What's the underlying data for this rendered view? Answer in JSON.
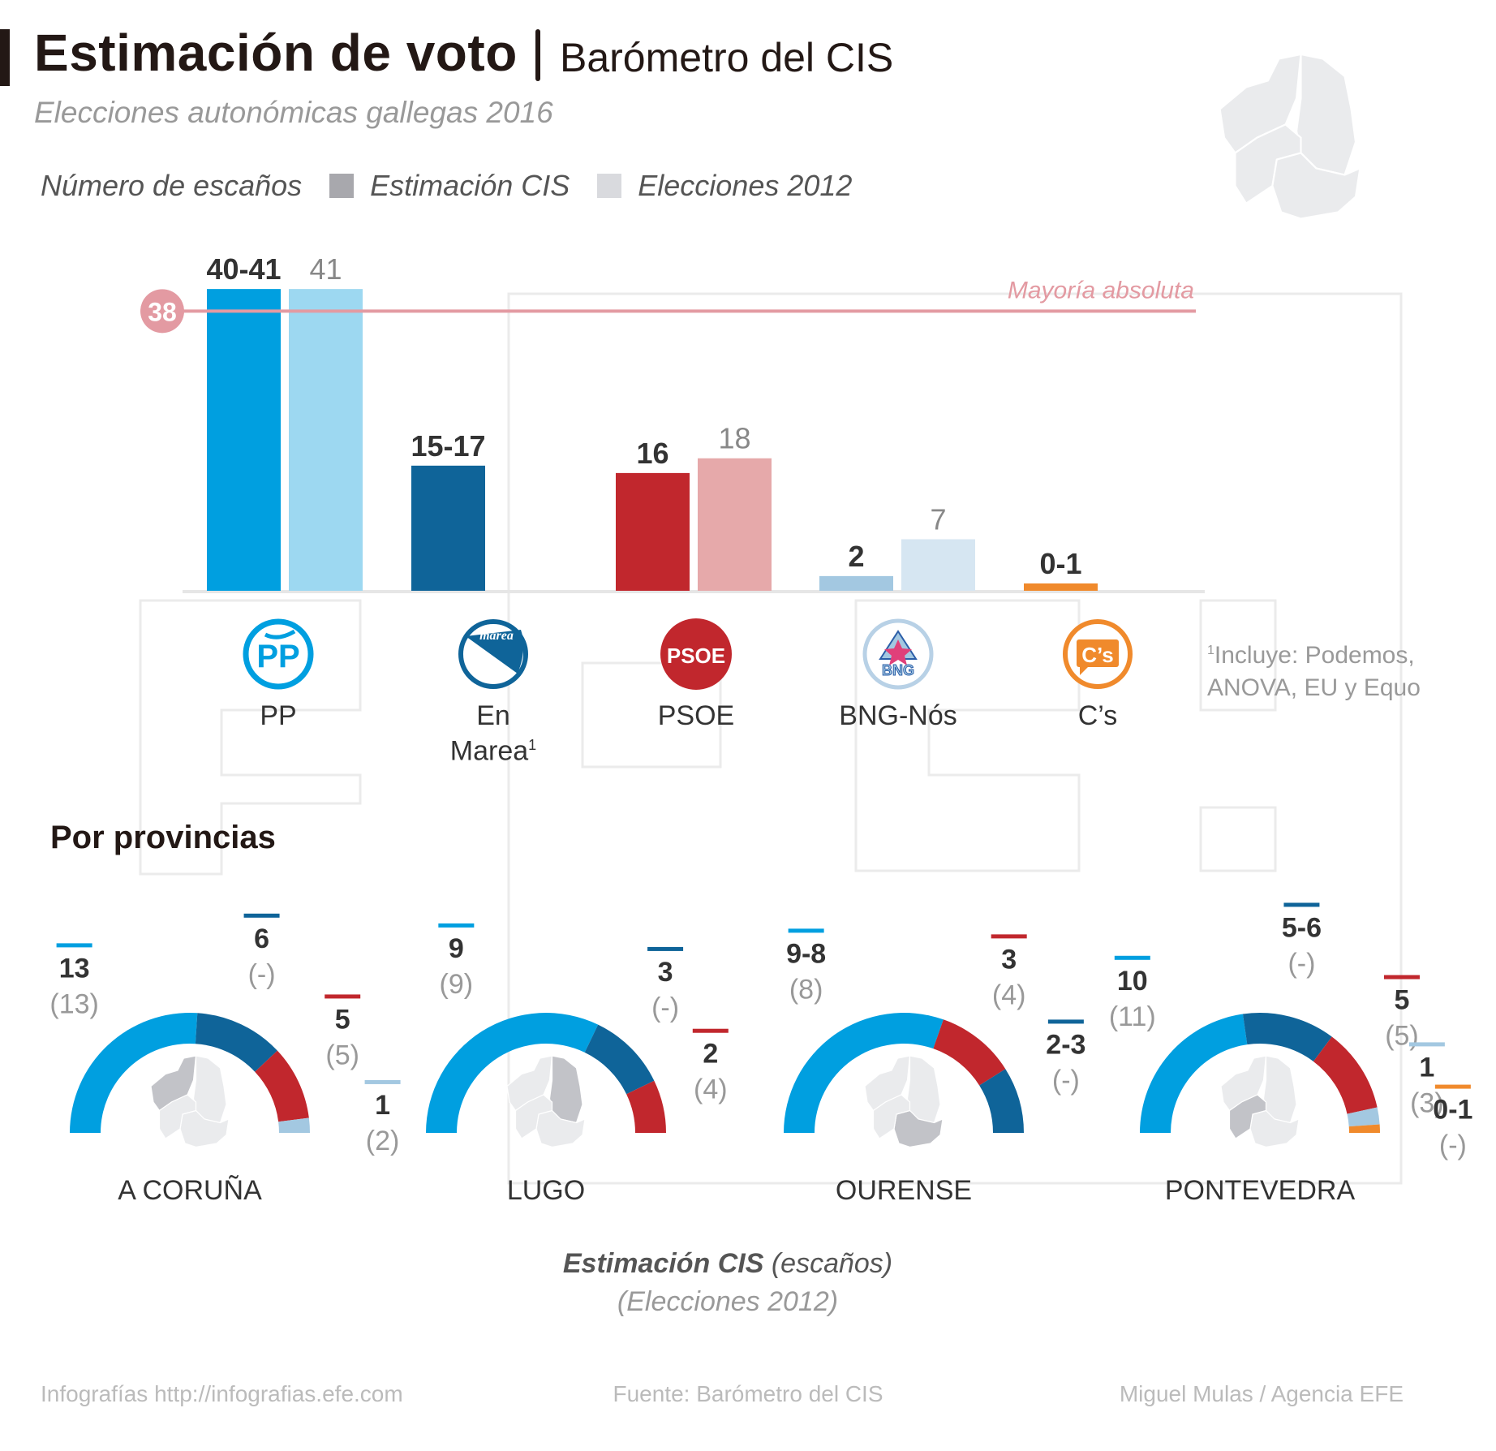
{
  "header": {
    "title": "Estimación de voto",
    "subtitle_right": "Barómetro del CIS",
    "subtitle": "Elecciones autonómicas gallegas 2016"
  },
  "legend": {
    "label": "Número de escaños",
    "items": [
      {
        "label": "Estimación CIS",
        "color": "#a8a8ad"
      },
      {
        "label": "Elecciones 2012",
        "color": "#d9dade"
      }
    ]
  },
  "majority": {
    "label": "Mayoría absoluta",
    "value": "38",
    "color": "#e39aa2"
  },
  "footnote": {
    "mark": "1",
    "line1": "Incluye: Podemos,",
    "line2": "ANOVA, EU y Equo"
  },
  "section_title": "Por provincias",
  "key": {
    "estimate_bold": "Estimación CIS",
    "estimate_rest": " (escaños)",
    "previous": "(Elecciones 2012)"
  },
  "footer": {
    "left": "Infografías http://infografias.efe.com",
    "center": "Fuente: Barómetro del CIS",
    "right": "Miguel Mulas / Agencia EFE"
  },
  "chart_data": [
    {
      "type": "bar",
      "title": "Estimación de voto — Número de escaños",
      "categories": [
        "PP",
        "En Marea",
        "PSOE",
        "BNG-Nós",
        "C's"
      ],
      "category_lines": [
        [
          "PP"
        ],
        [
          "En",
          "Marea"
        ],
        [
          "PSOE"
        ],
        [
          "BNG-Nós"
        ],
        [
          "C’s"
        ]
      ],
      "category_sup": [
        "",
        "1",
        "",
        "",
        ""
      ],
      "logos": [
        "pp-logo",
        "en-marea-logo",
        "psoe-logo",
        "bng-logo",
        "cs-logo"
      ],
      "series": [
        {
          "name": "Estimación CIS",
          "labels": [
            "40-41",
            "15-17",
            "16",
            "2",
            "0-1"
          ],
          "values": [
            41,
            17,
            16,
            2,
            1
          ],
          "colors": [
            "#009fe0",
            "#0f6499",
            "#c1272d",
            "#a3c8e1",
            "#f08a2c"
          ]
        },
        {
          "name": "Elecciones 2012",
          "labels": [
            "41",
            null,
            "18",
            "7",
            null
          ],
          "values": [
            41,
            null,
            18,
            7,
            null
          ],
          "colors": [
            "#9dd8f1",
            null,
            "#e6a9aa",
            "#d6e6f2",
            null
          ]
        }
      ],
      "reference_line": {
        "value": 38,
        "label": "Mayoría absoluta"
      },
      "ylim": [
        0,
        41
      ]
    },
    {
      "type": "pie",
      "subtype": "half-donut",
      "title": "Por provincias",
      "provinces": [
        {
          "name": "A CORUÑA",
          "highlight": 0,
          "segments": [
            {
              "party": "PP",
              "estimate": "13",
              "previous": "(13)",
              "value": 13,
              "color": "#009fe0"
            },
            {
              "party": "En Marea",
              "estimate": "6",
              "previous": "(-)",
              "value": 6,
              "color": "#0f6499"
            },
            {
              "party": "PSOE",
              "estimate": "5",
              "previous": "(5)",
              "value": 5,
              "color": "#c1272d"
            },
            {
              "party": "BNG-Nós",
              "estimate": "1",
              "previous": "(2)",
              "value": 1,
              "color": "#a3c8e1"
            }
          ]
        },
        {
          "name": "LUGO",
          "highlight": 1,
          "segments": [
            {
              "party": "PP",
              "estimate": "9",
              "previous": "(9)",
              "value": 9,
              "color": "#009fe0"
            },
            {
              "party": "En Marea",
              "estimate": "3",
              "previous": "(-)",
              "value": 3,
              "color": "#0f6499"
            },
            {
              "party": "PSOE",
              "estimate": "2",
              "previous": "(4)",
              "value": 2,
              "color": "#c1272d"
            }
          ]
        },
        {
          "name": "OURENSE",
          "highlight": 2,
          "segments": [
            {
              "party": "PP",
              "estimate": "9-8",
              "previous": "(8)",
              "value": 8.5,
              "color": "#009fe0"
            },
            {
              "party": "PSOE",
              "estimate": "3",
              "previous": "(4)",
              "value": 3,
              "color": "#c1272d"
            },
            {
              "party": "En Marea",
              "estimate": "2-3",
              "previous": "(-)",
              "value": 2.5,
              "color": "#0f6499"
            }
          ]
        },
        {
          "name": "PONTEVEDRA",
          "highlight": 3,
          "segments": [
            {
              "party": "PP",
              "estimate": "10",
              "previous": "(11)",
              "value": 10,
              "color": "#009fe0"
            },
            {
              "party": "En Marea",
              "estimate": "5-6",
              "previous": "(-)",
              "value": 5.5,
              "color": "#0f6499"
            },
            {
              "party": "PSOE",
              "estimate": "5",
              "previous": "(5)",
              "value": 5,
              "color": "#c1272d"
            },
            {
              "party": "BNG-Nós",
              "estimate": "1",
              "previous": "(3)",
              "value": 1,
              "color": "#a3c8e1"
            },
            {
              "party": "C's",
              "estimate": "0-1",
              "previous": "(-)",
              "value": 0.5,
              "color": "#f08a2c"
            }
          ]
        }
      ]
    }
  ]
}
